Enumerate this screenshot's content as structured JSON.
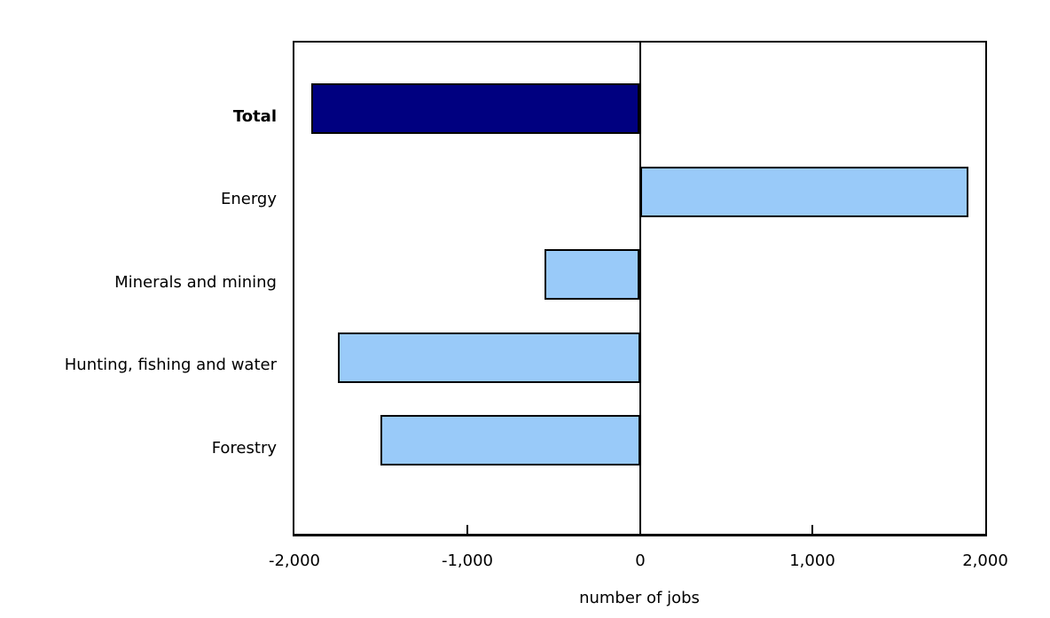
{
  "chart_data": {
    "type": "bar",
    "orientation": "horizontal",
    "xlabel": "number of jobs",
    "categories": [
      "Total",
      "Energy",
      "Minerals and mining",
      "Hunting, fishing and water",
      "Forestry"
    ],
    "values": [
      -1900,
      1900,
      -550,
      -1750,
      -1500
    ],
    "emphasized_category": "Total",
    "bar_colors": [
      "#000080",
      "#99CAF9",
      "#99CAF9",
      "#99CAF9",
      "#99CAF9"
    ],
    "bar_border_color": "#000000",
    "plot_border_color": "#000000",
    "background_color": "#ffffff",
    "xlim": [
      -2000,
      2000
    ],
    "x_ticks": [
      -2000,
      -1000,
      0,
      1000,
      2000
    ],
    "x_tick_labels": [
      "-2,000",
      "-1,000",
      "0",
      "1,000",
      "2,000"
    ],
    "zero_line": true,
    "grid": false
  }
}
